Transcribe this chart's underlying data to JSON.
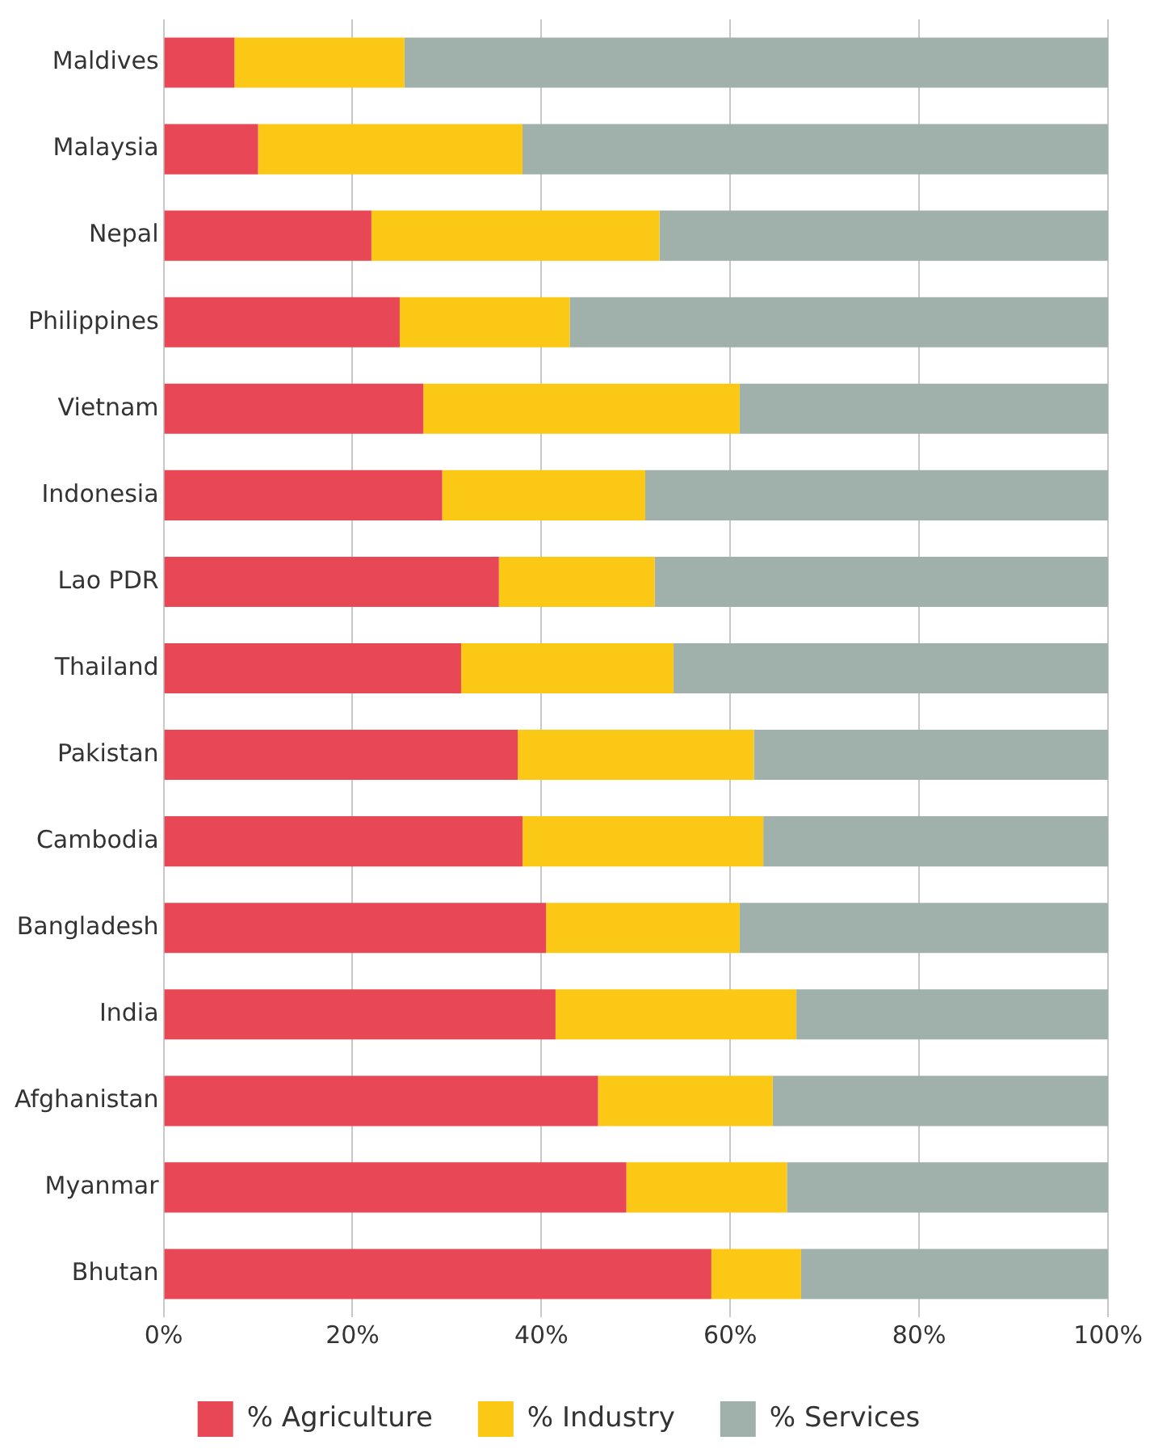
{
  "chart_data": {
    "type": "bar",
    "orientation": "horizontal",
    "stacked": true,
    "categories": [
      "Maldives",
      "Malaysia",
      "Nepal",
      "Philippines",
      "Vietnam",
      "Indonesia",
      "Lao PDR",
      "Thailand",
      "Pakistan",
      "Cambodia",
      "Bangladesh",
      "India",
      "Afghanistan",
      "Myanmar",
      "Bhutan"
    ],
    "series": [
      {
        "name": "% Agriculture",
        "color": "#e84855",
        "values": [
          7.5,
          10,
          22,
          25,
          27.5,
          29.5,
          35.5,
          31.5,
          37.5,
          38,
          40.5,
          41.5,
          46,
          49,
          58
        ]
      },
      {
        "name": "% Industry",
        "color": "#fcc816",
        "values": [
          18,
          28,
          30.5,
          18,
          33.5,
          21.5,
          16.5,
          22.5,
          25,
          25.5,
          20.5,
          25.5,
          18.5,
          17,
          9.5
        ]
      },
      {
        "name": "% Services",
        "color": "#9fb1aa",
        "values": [
          74.5,
          62,
          47.5,
          57,
          39,
          49,
          48,
          46,
          37.5,
          36.5,
          39,
          33,
          35.5,
          34,
          32.5
        ]
      }
    ],
    "xlim": [
      0,
      100
    ],
    "xticks": [
      {
        "value": 0,
        "label": "0%"
      },
      {
        "value": 20,
        "label": "20%"
      },
      {
        "value": 40,
        "label": "40%"
      },
      {
        "value": 60,
        "label": "60%"
      },
      {
        "value": 80,
        "label": "80%"
      },
      {
        "value": 100,
        "label": "100%"
      }
    ],
    "grid": "x",
    "legend": "bottom"
  }
}
